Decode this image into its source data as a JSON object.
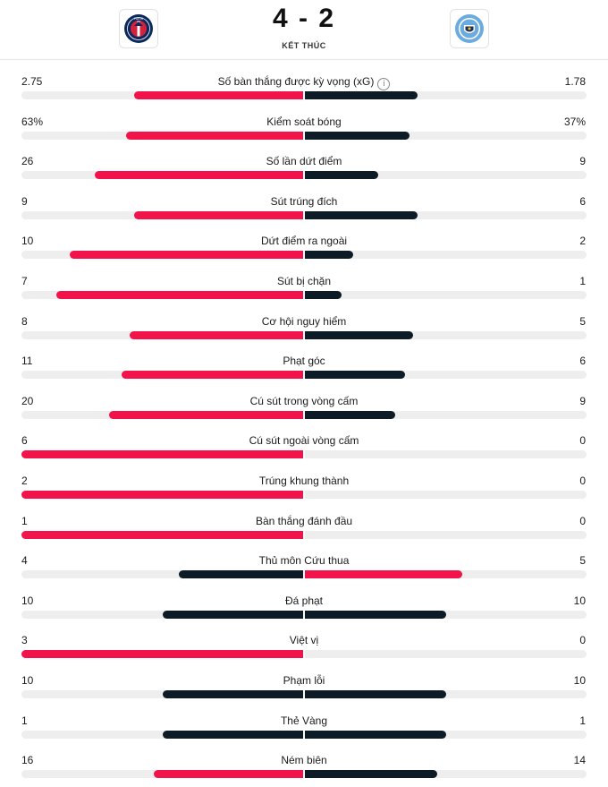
{
  "match": {
    "score": "4 - 2",
    "status": "KẾT THÚC",
    "home_crest_icon": "psg-crest-icon",
    "away_crest_icon": "man-city-crest-icon"
  },
  "colors": {
    "highlight": "#f2134a",
    "normal": "#0d1b26",
    "track": "#eeeeee"
  },
  "stats": [
    {
      "label": "Số bàn thắng được kỳ vọng (xG)",
      "home": "2.75",
      "away": "1.78",
      "home_frac": 0.6,
      "away_frac": 0.4,
      "home_hl": true,
      "away_hl": false,
      "info": true
    },
    {
      "label": "Kiểm soát bóng",
      "home": "63%",
      "away": "37%",
      "home_frac": 0.63,
      "away_frac": 0.37,
      "home_hl": true,
      "away_hl": false
    },
    {
      "label": "Số lần dứt điểm",
      "home": "26",
      "away": "9",
      "home_frac": 0.74,
      "away_frac": 0.26,
      "home_hl": true,
      "away_hl": false
    },
    {
      "label": "Sút trúng đích",
      "home": "9",
      "away": "6",
      "home_frac": 0.6,
      "away_frac": 0.4,
      "home_hl": true,
      "away_hl": false
    },
    {
      "label": "Dứt điểm ra ngoài",
      "home": "10",
      "away": "2",
      "home_frac": 0.83,
      "away_frac": 0.17,
      "home_hl": true,
      "away_hl": false
    },
    {
      "label": "Sút bị chặn",
      "home": "7",
      "away": "1",
      "home_frac": 0.875,
      "away_frac": 0.13,
      "home_hl": true,
      "away_hl": false
    },
    {
      "label": "Cơ hội nguy hiểm",
      "home": "8",
      "away": "5",
      "home_frac": 0.615,
      "away_frac": 0.385,
      "home_hl": true,
      "away_hl": false
    },
    {
      "label": "Phạt góc",
      "home": "11",
      "away": "6",
      "home_frac": 0.645,
      "away_frac": 0.355,
      "home_hl": true,
      "away_hl": false
    },
    {
      "label": "Cú sút trong vòng cấm",
      "home": "20",
      "away": "9",
      "home_frac": 0.69,
      "away_frac": 0.32,
      "home_hl": true,
      "away_hl": false
    },
    {
      "label": "Cú sút ngoài vòng cấm",
      "home": "6",
      "away": "0",
      "home_frac": 1.0,
      "away_frac": 0.0,
      "home_hl": true,
      "away_hl": false
    },
    {
      "label": "Trúng khung thành",
      "home": "2",
      "away": "0",
      "home_frac": 1.0,
      "away_frac": 0.0,
      "home_hl": true,
      "away_hl": false
    },
    {
      "label": "Bàn thắng đánh đầu",
      "home": "1",
      "away": "0",
      "home_frac": 1.0,
      "away_frac": 0.0,
      "home_hl": true,
      "away_hl": false
    },
    {
      "label": "Thủ môn Cứu thua",
      "home": "4",
      "away": "5",
      "home_frac": 0.44,
      "away_frac": 0.56,
      "home_hl": false,
      "away_hl": true
    },
    {
      "label": "Đá phạt",
      "home": "10",
      "away": "10",
      "home_frac": 0.5,
      "away_frac": 0.5,
      "home_hl": false,
      "away_hl": false
    },
    {
      "label": "Việt vị",
      "home": "3",
      "away": "0",
      "home_frac": 1.0,
      "away_frac": 0.0,
      "home_hl": true,
      "away_hl": false
    },
    {
      "label": "Phạm lỗi",
      "home": "10",
      "away": "10",
      "home_frac": 0.5,
      "away_frac": 0.5,
      "home_hl": false,
      "away_hl": false
    },
    {
      "label": "Thẻ Vàng",
      "home": "1",
      "away": "1",
      "home_frac": 0.5,
      "away_frac": 0.5,
      "home_hl": false,
      "away_hl": false
    },
    {
      "label": "Ném biên",
      "home": "16",
      "away": "14",
      "home_frac": 0.53,
      "away_frac": 0.47,
      "home_hl": true,
      "away_hl": false
    }
  ]
}
